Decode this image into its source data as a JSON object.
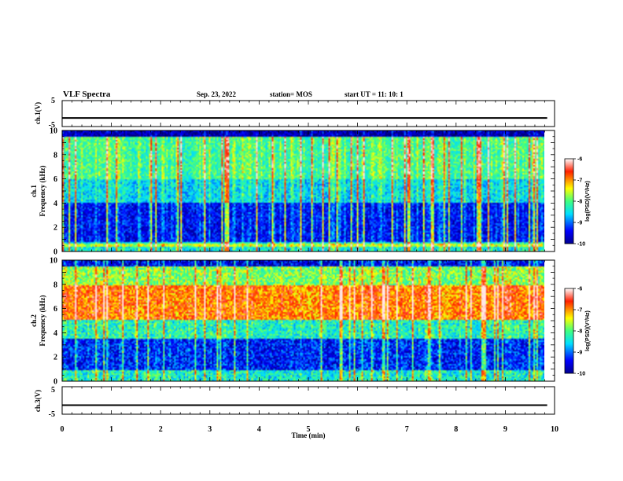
{
  "header": {
    "title": "VLF Spectra",
    "date": "Sep. 23, 2022",
    "station": "station= MOS",
    "start": "start  UT =   11: 10: 1"
  },
  "chart_data": [
    {
      "type": "line",
      "panel": "ch1-voltage",
      "ylabel": "ch.1(V)",
      "ylim": [
        -5,
        5
      ],
      "y_ticks": [
        "5",
        "-5"
      ],
      "level": -1.7
    },
    {
      "type": "heatmap",
      "panel": "ch1-spectrogram",
      "ylabel_line1": "ch.1",
      "ylabel_line2": "Frequency (kHz)",
      "ylim": [
        0,
        10
      ],
      "y_ticks": [
        "0",
        "2",
        "4",
        "6",
        "8",
        "10"
      ],
      "colorbar": {
        "label": "log(PSD)(V²/Hz)",
        "range": [
          -10,
          -6
        ],
        "ticks": [
          "-6",
          "-7",
          "-8",
          "-9",
          "-10"
        ]
      },
      "profile": "impulsive"
    },
    {
      "type": "heatmap",
      "panel": "ch2-spectrogram",
      "ylabel_line1": "ch.2",
      "ylabel_line2": "Frequency (kHz)",
      "ylim": [
        0,
        10
      ],
      "y_ticks": [
        "0",
        "2",
        "4",
        "6",
        "8",
        "10"
      ],
      "colorbar": {
        "label": "log(PSD)(V²/Hz)",
        "range": [
          -10,
          -6
        ],
        "ticks": [
          "-6",
          "-7",
          "-8",
          "-9",
          "-10"
        ]
      },
      "profile": "band"
    },
    {
      "type": "line",
      "panel": "ch3-voltage",
      "ylabel": "ch.3(V)",
      "ylim": [
        -5,
        5
      ],
      "y_ticks": [
        "5",
        "-5"
      ],
      "level": -1.7
    }
  ],
  "xaxis": {
    "label": "Time  (min)",
    "xlim": [
      0,
      10
    ],
    "ticks": [
      "0",
      "1",
      "2",
      "3",
      "4",
      "5",
      "6",
      "7",
      "8",
      "9",
      "10"
    ],
    "data_end": 9.85
  }
}
